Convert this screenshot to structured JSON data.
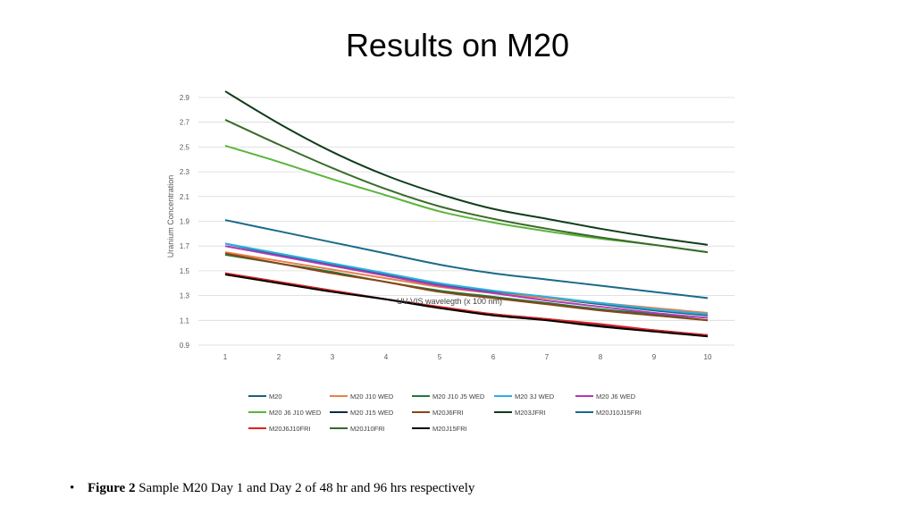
{
  "slide": {
    "title": "Results on M20",
    "caption_bold": "Figure 2",
    "caption_text": " Sample M20 Day 1 and Day 2 of 48 hr and 96 hrs respectively"
  },
  "chart_data": {
    "type": "line",
    "xlabel": "UV-VIS wavelegth (x 100 nm)",
    "ylabel": "Uranium Concentration",
    "x": [
      1,
      2,
      3,
      4,
      5,
      6,
      7,
      8,
      9,
      10
    ],
    "ylim": [
      0.9,
      2.9
    ],
    "yticks": [
      "0.9",
      "1.1",
      "1.3",
      "1.5",
      "1.7",
      "1.9",
      "2.1",
      "2.3",
      "2.5",
      "2.7",
      "2.9"
    ],
    "grid": true,
    "legend_position": "bottom",
    "series": [
      {
        "name": "M20",
        "color": "#1f5f7f",
        "values": [
          1.72,
          1.63,
          1.55,
          1.47,
          1.39,
          1.33,
          1.28,
          1.23,
          1.18,
          1.14
        ]
      },
      {
        "name": "M20 J10 WED",
        "color": "#e8804a",
        "values": [
          1.65,
          1.58,
          1.51,
          1.44,
          1.37,
          1.32,
          1.28,
          1.24,
          1.2,
          1.16
        ]
      },
      {
        "name": "M20 J10 J5 WED",
        "color": "#1e7a3a",
        "values": [
          1.63,
          1.56,
          1.49,
          1.41,
          1.34,
          1.29,
          1.24,
          1.19,
          1.15,
          1.1
        ]
      },
      {
        "name": "M20 3J WED",
        "color": "#2bb0e0",
        "values": [
          1.72,
          1.64,
          1.56,
          1.48,
          1.4,
          1.34,
          1.29,
          1.24,
          1.19,
          1.15
        ]
      },
      {
        "name": "M20 J6 WED",
        "color": "#b03ab8",
        "values": [
          1.7,
          1.62,
          1.54,
          1.46,
          1.38,
          1.32,
          1.26,
          1.21,
          1.16,
          1.12
        ]
      },
      {
        "name": "M20 J6 J10 WED",
        "color": "#5ab53a",
        "values": [
          2.51,
          2.38,
          2.24,
          2.11,
          1.98,
          1.89,
          1.82,
          1.76,
          1.71,
          1.65
        ]
      },
      {
        "name": "M20 J15 WED",
        "color": "#0d2a4a",
        "values": [
          1.48,
          1.41,
          1.34,
          1.27,
          1.2,
          1.15,
          1.11,
          1.06,
          1.02,
          0.98
        ]
      },
      {
        "name": "M20J6FRI",
        "color": "#8a4518",
        "values": [
          1.64,
          1.56,
          1.48,
          1.41,
          1.33,
          1.28,
          1.23,
          1.18,
          1.14,
          1.1
        ]
      },
      {
        "name": "M203JFRI",
        "color": "#0f3d1a",
        "values": [
          2.95,
          2.69,
          2.46,
          2.27,
          2.12,
          2.0,
          1.92,
          1.84,
          1.77,
          1.71
        ]
      },
      {
        "name": "M20J10J15FRI",
        "color": "#1a6a8a",
        "values": [
          1.91,
          1.82,
          1.73,
          1.64,
          1.55,
          1.48,
          1.43,
          1.38,
          1.33,
          1.28
        ]
      },
      {
        "name": "M20J6J10FRI",
        "color": "#e02020",
        "values": [
          1.48,
          1.41,
          1.34,
          1.27,
          1.21,
          1.15,
          1.11,
          1.07,
          1.02,
          0.98
        ]
      },
      {
        "name": "M20J10FRI",
        "color": "#3a6a2a",
        "values": [
          2.72,
          2.52,
          2.33,
          2.16,
          2.02,
          1.92,
          1.84,
          1.77,
          1.71,
          1.65
        ]
      },
      {
        "name": "M20J15FRI",
        "color": "#000000",
        "values": [
          1.47,
          1.4,
          1.33,
          1.27,
          1.2,
          1.14,
          1.1,
          1.05,
          1.01,
          0.97
        ]
      }
    ]
  }
}
